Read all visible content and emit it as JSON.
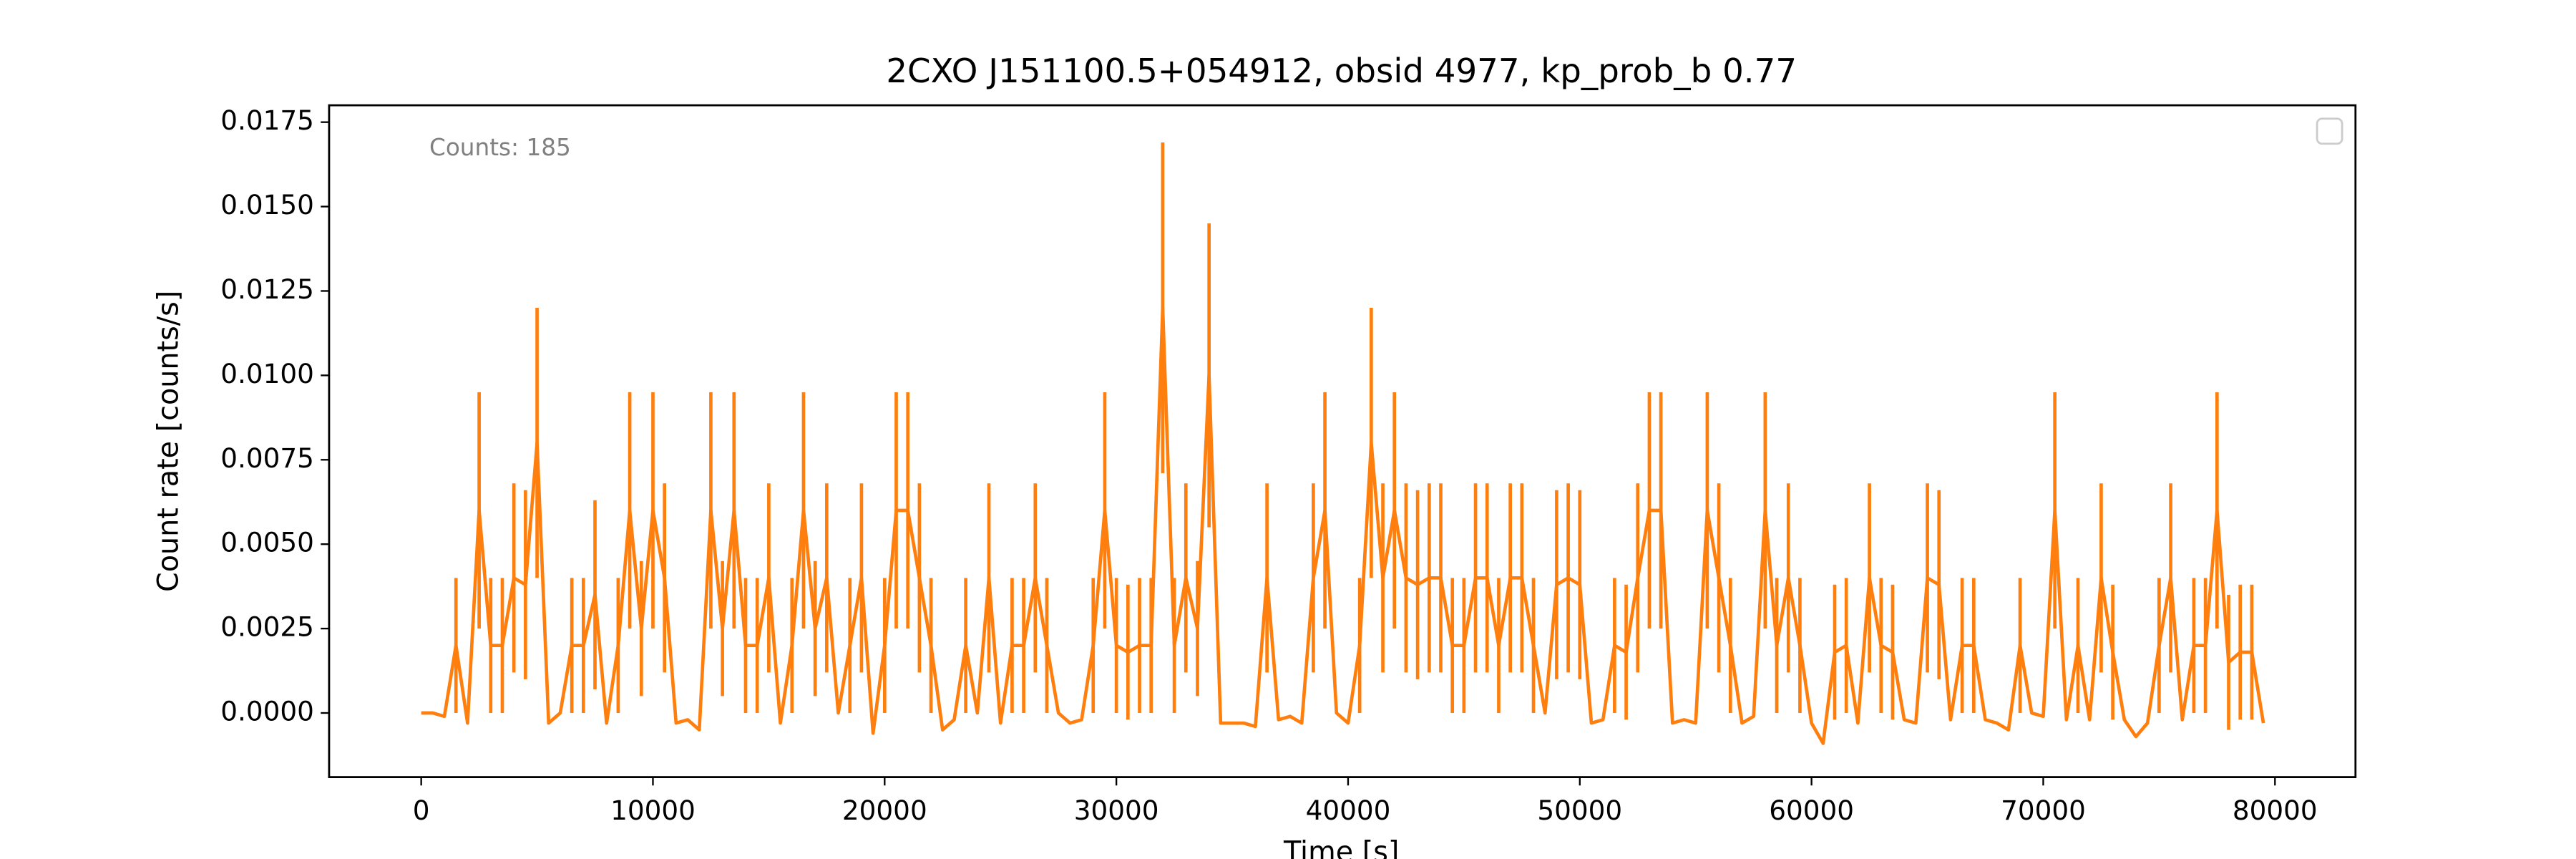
{
  "chart_data": {
    "type": "errorbar-line",
    "title": "2CXO J151100.5+054912, obsid 4977, kp_prob_b 0.77",
    "x_label": "Time [s]",
    "y_label": "Count rate [counts/s]",
    "annotation": "Counts: 185",
    "color": "#ff7f0e",
    "x": [
      0,
      500,
      1000,
      1500,
      2000,
      2500,
      3000,
      3500,
      4000,
      4500,
      5000,
      5500,
      6000,
      6500,
      7000,
      7500,
      8000,
      8500,
      9000,
      9500,
      10000,
      10500,
      11000,
      11500,
      12000,
      12500,
      13000,
      13500,
      14000,
      14500,
      15000,
      15500,
      16000,
      16500,
      17000,
      17500,
      18000,
      18500,
      19000,
      19500,
      20000,
      20500,
      21000,
      21500,
      22000,
      22500,
      23000,
      23500,
      24000,
      24500,
      25000,
      25500,
      26000,
      26500,
      27000,
      27500,
      28000,
      28500,
      29000,
      29500,
      30000,
      30500,
      31000,
      31500,
      32000,
      32500,
      33000,
      33500,
      34000,
      34500,
      35000,
      35500,
      36000,
      36500,
      37000,
      37500,
      38000,
      38500,
      39000,
      39500,
      40000,
      40500,
      41000,
      41500,
      42000,
      42500,
      43000,
      43500,
      44000,
      44500,
      45000,
      45500,
      46000,
      46500,
      47000,
      47500,
      48000,
      48500,
      49000,
      49500,
      50000,
      50500,
      51000,
      51500,
      52000,
      52500,
      53000,
      53500,
      54000,
      54500,
      55000,
      55500,
      56000,
      56500,
      57000,
      57500,
      58000,
      58500,
      59000,
      59500,
      60000,
      60500,
      61000,
      61500,
      62000,
      62500,
      63000,
      63500,
      64000,
      64500,
      65000,
      65500,
      66000,
      66500,
      67000,
      67500,
      68000,
      68500,
      69000,
      69500,
      70000,
      70500,
      71000,
      71500,
      72000,
      72500,
      73000,
      73500,
      74000,
      74500,
      75000,
      75500,
      76000,
      76500,
      77000,
      77500,
      78000,
      78500,
      79000,
      79500
    ],
    "values": [
      0,
      0,
      -0.0001,
      0.002,
      -0.0003,
      0.006,
      0.002,
      0.002,
      0.004,
      0.0038,
      0.008,
      -0.0003,
      0,
      0.002,
      0.002,
      0.0035,
      -0.0003,
      0.002,
      0.006,
      0.0025,
      0.006,
      0.004,
      -0.0003,
      -0.0002,
      -0.0005,
      0.006,
      0.0025,
      0.006,
      0.002,
      0.002,
      0.004,
      -0.0003,
      0.002,
      0.006,
      0.0025,
      0.004,
      0,
      0.002,
      0.004,
      -0.0006,
      0.002,
      0.006,
      0.006,
      0.004,
      0.002,
      -0.0005,
      -0.0002,
      0.002,
      0,
      0.004,
      -0.0003,
      0.002,
      0.002,
      0.004,
      0.002,
      0,
      -0.0003,
      -0.0002,
      0.002,
      0.006,
      0.002,
      0.0018,
      0.002,
      0.002,
      0.012,
      0.002,
      0.004,
      0.0025,
      0.01,
      -0.0003,
      -0.0003,
      -0.0003,
      -0.0004,
      0.004,
      -0.0002,
      -0.0001,
      -0.0003,
      0.004,
      0.006,
      0,
      -0.0003,
      0.002,
      0.008,
      0.004,
      0.006,
      0.004,
      0.0038,
      0.004,
      0.004,
      0.002,
      0.002,
      0.004,
      0.004,
      0.002,
      0.004,
      0.004,
      0.002,
      0,
      0.0038,
      0.004,
      0.0038,
      -0.0003,
      -0.0002,
      0.002,
      0.0018,
      0.004,
      0.006,
      0.006,
      -0.0003,
      -0.0002,
      -0.0003,
      0.006,
      0.004,
      0.002,
      -0.0003,
      -0.0001,
      0.006,
      0.002,
      0.004,
      0.002,
      -0.0003,
      -0.0009,
      0.0018,
      0.002,
      -0.0003,
      0.004,
      0.002,
      0.0018,
      -0.0002,
      -0.0003,
      0.004,
      0.0038,
      -0.0002,
      0.002,
      0.002,
      -0.0002,
      -0.0003,
      -0.0005,
      0.002,
      0,
      -0.0001,
      0.006,
      -0.0002,
      0.002,
      -0.0002,
      0.004,
      0.0018,
      -0.0002,
      -0.0007,
      -0.0003,
      0.002,
      0.004,
      -0.0002,
      0.002,
      0.002,
      0.006,
      0.0015,
      0.0018,
      0.0018,
      -0.0003
    ],
    "errors": [
      0,
      0,
      0,
      0.002,
      0,
      0.0035,
      0.002,
      0.002,
      0.0028,
      0.0028,
      0.004,
      0,
      0,
      0.002,
      0.002,
      0.0028,
      0,
      0.002,
      0.0035,
      0.002,
      0.0035,
      0.0028,
      0,
      0,
      0,
      0.0035,
      0.002,
      0.0035,
      0.002,
      0.002,
      0.0028,
      0,
      0.002,
      0.0035,
      0.002,
      0.0028,
      0,
      0.002,
      0.0028,
      0,
      0.002,
      0.0035,
      0.0035,
      0.0028,
      0.002,
      0,
      0,
      0.002,
      0,
      0.0028,
      0,
      0.002,
      0.002,
      0.0028,
      0.002,
      0,
      0,
      0,
      0.002,
      0.0035,
      0.002,
      0.002,
      0.002,
      0.002,
      0.0049,
      0.002,
      0.0028,
      0.002,
      0.0045,
      0,
      0,
      0,
      0,
      0.0028,
      0,
      0,
      0,
      0.0028,
      0.0035,
      0,
      0,
      0.002,
      0.004,
      0.0028,
      0.0035,
      0.0028,
      0.0028,
      0.0028,
      0.0028,
      0.002,
      0.002,
      0.0028,
      0.0028,
      0.002,
      0.0028,
      0.0028,
      0.002,
      0,
      0.0028,
      0.0028,
      0.0028,
      0,
      0,
      0.002,
      0.002,
      0.0028,
      0.0035,
      0.0035,
      0,
      0,
      0,
      0.0035,
      0.0028,
      0.002,
      0,
      0,
      0.0035,
      0.002,
      0.0028,
      0.002,
      0,
      0,
      0.002,
      0.002,
      0,
      0.0028,
      0.002,
      0.002,
      0,
      0,
      0.0028,
      0.0028,
      0,
      0.002,
      0.002,
      0,
      0,
      0,
      0.002,
      0,
      0,
      0.0035,
      0,
      0.002,
      0,
      0.0028,
      0.002,
      0,
      0,
      0,
      0.002,
      0.0028,
      0,
      0.002,
      0.002,
      0.0035,
      0.002,
      0.002,
      0.002,
      0
    ],
    "xlim": [
      -3975,
      83475
    ],
    "xticks": [
      0,
      10000,
      20000,
      30000,
      40000,
      50000,
      60000,
      70000,
      80000
    ],
    "ylim": [
      -0.0019,
      0.018
    ],
    "yticks": [
      {
        "value": 0,
        "label": "0.0000"
      },
      0.0025,
      {
        "value": 0.005,
        "label": "0.0050"
      },
      0.0075,
      {
        "value": 0.01,
        "label": "0.0100"
      },
      0.0125,
      {
        "value": 0.015,
        "label": "0.0150"
      },
      0.0175
    ],
    "grid": false
  }
}
